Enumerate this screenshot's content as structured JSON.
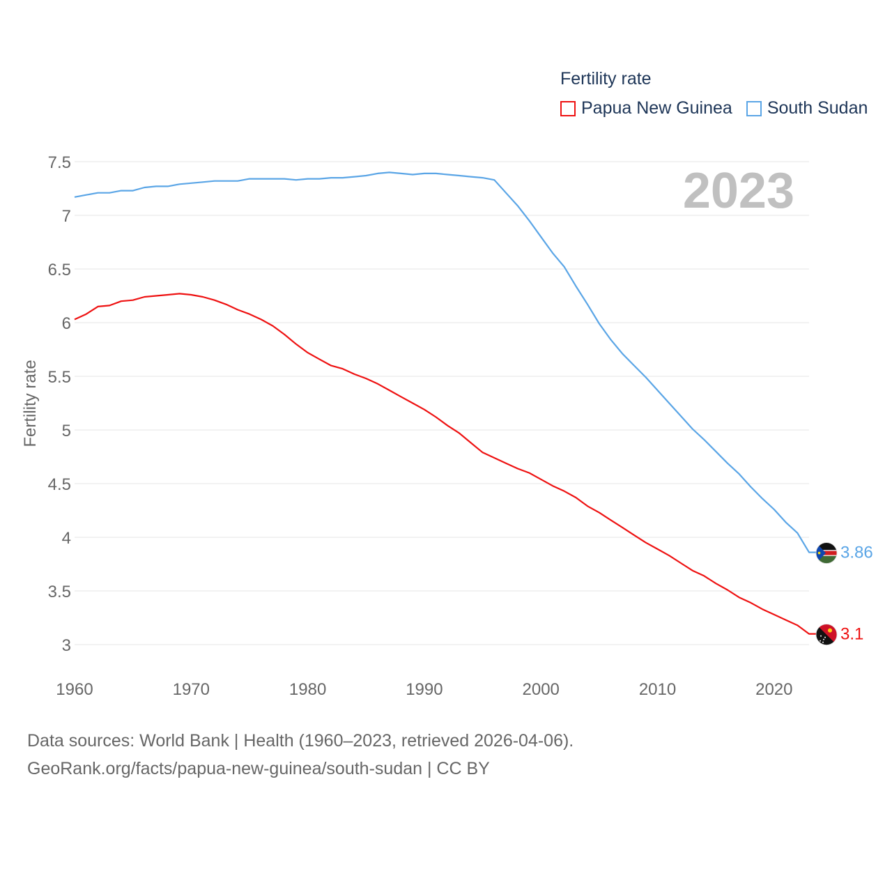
{
  "legend": {
    "title": "Fertility rate",
    "items": [
      {
        "label": "Papua New Guinea",
        "color": "#ee1111"
      },
      {
        "label": "South Sudan",
        "color": "#5aa5e6"
      }
    ]
  },
  "footer": {
    "line1": "Data sources: World Bank | Health (1960–2023, retrieved 2026-04-06).",
    "line2": "GeoRank.org/facts/papua-new-guinea/south-sudan | CC BY"
  },
  "chart_data": {
    "type": "line",
    "title": "Fertility rate",
    "current_year_label": "2023",
    "ylabel": "Fertility rate",
    "xlabel": "",
    "xlim": [
      1960,
      2023
    ],
    "ylim": [
      2.85,
      7.6
    ],
    "grid": true,
    "x_ticks": [
      1960,
      1970,
      1980,
      1990,
      2000,
      2010,
      2020
    ],
    "y_ticks": [
      {
        "value": 3,
        "label": "3"
      },
      {
        "value": 3.5,
        "label": "3.5"
      },
      {
        "value": 4,
        "label": "4"
      },
      {
        "value": 4.5,
        "label": "4.5"
      },
      {
        "value": 5,
        "label": "5"
      },
      {
        "value": 5.5,
        "label": "5.5"
      },
      {
        "value": 6,
        "label": "6"
      },
      {
        "value": 6.5,
        "label": "6.5"
      },
      {
        "value": 7,
        "label": "7"
      },
      {
        "value": 7.5,
        "label": "7.5"
      }
    ],
    "series": [
      {
        "name": "Papua New Guinea",
        "color": "#ee1111",
        "end_label": "3.1",
        "flag_icon": "papua-new-guinea-flag-icon",
        "x": [
          1960,
          1961,
          1962,
          1963,
          1964,
          1965,
          1966,
          1967,
          1968,
          1969,
          1970,
          1971,
          1972,
          1973,
          1974,
          1975,
          1976,
          1977,
          1978,
          1979,
          1980,
          1981,
          1982,
          1983,
          1984,
          1985,
          1986,
          1987,
          1988,
          1989,
          1990,
          1991,
          1992,
          1993,
          1994,
          1995,
          1996,
          1997,
          1998,
          1999,
          2000,
          2001,
          2002,
          2003,
          2004,
          2005,
          2006,
          2007,
          2008,
          2009,
          2010,
          2011,
          2012,
          2013,
          2014,
          2015,
          2016,
          2017,
          2018,
          2019,
          2020,
          2021,
          2022,
          2023
        ],
        "values": [
          6.03,
          6.08,
          6.15,
          6.16,
          6.2,
          6.21,
          6.24,
          6.25,
          6.26,
          6.27,
          6.26,
          6.24,
          6.21,
          6.17,
          6.12,
          6.08,
          6.03,
          5.97,
          5.89,
          5.8,
          5.72,
          5.66,
          5.6,
          5.57,
          5.52,
          5.48,
          5.43,
          5.37,
          5.31,
          5.25,
          5.19,
          5.12,
          5.04,
          4.97,
          4.88,
          4.79,
          4.74,
          4.69,
          4.64,
          4.6,
          4.54,
          4.48,
          4.43,
          4.37,
          4.29,
          4.23,
          4.16,
          4.09,
          4.02,
          3.95,
          3.89,
          3.83,
          3.76,
          3.69,
          3.64,
          3.57,
          3.51,
          3.44,
          3.39,
          3.33,
          3.28,
          3.23,
          3.18,
          3.1
        ]
      },
      {
        "name": "South Sudan",
        "color": "#5aa5e6",
        "end_label": "3.86",
        "flag_icon": "south-sudan-flag-icon",
        "x": [
          1960,
          1961,
          1962,
          1963,
          1964,
          1965,
          1966,
          1967,
          1968,
          1969,
          1970,
          1971,
          1972,
          1973,
          1974,
          1975,
          1976,
          1977,
          1978,
          1979,
          1980,
          1981,
          1982,
          1983,
          1984,
          1985,
          1986,
          1987,
          1988,
          1989,
          1990,
          1991,
          1992,
          1993,
          1994,
          1995,
          1996,
          1997,
          1998,
          1999,
          2000,
          2001,
          2002,
          2003,
          2004,
          2005,
          2006,
          2007,
          2008,
          2009,
          2010,
          2011,
          2012,
          2013,
          2014,
          2015,
          2016,
          2017,
          2018,
          2019,
          2020,
          2021,
          2022,
          2023
        ],
        "values": [
          7.17,
          7.19,
          7.21,
          7.21,
          7.23,
          7.23,
          7.26,
          7.27,
          7.27,
          7.29,
          7.3,
          7.31,
          7.32,
          7.32,
          7.32,
          7.34,
          7.34,
          7.34,
          7.34,
          7.33,
          7.34,
          7.34,
          7.35,
          7.35,
          7.36,
          7.37,
          7.39,
          7.4,
          7.39,
          7.38,
          7.39,
          7.39,
          7.38,
          7.37,
          7.36,
          7.35,
          7.33,
          7.21,
          7.09,
          6.95,
          6.8,
          6.65,
          6.52,
          6.34,
          6.17,
          5.99,
          5.84,
          5.71,
          5.6,
          5.49,
          5.37,
          5.25,
          5.13,
          5.01,
          4.91,
          4.8,
          4.69,
          4.59,
          4.47,
          4.36,
          4.26,
          4.14,
          4.04,
          3.86
        ]
      }
    ]
  }
}
